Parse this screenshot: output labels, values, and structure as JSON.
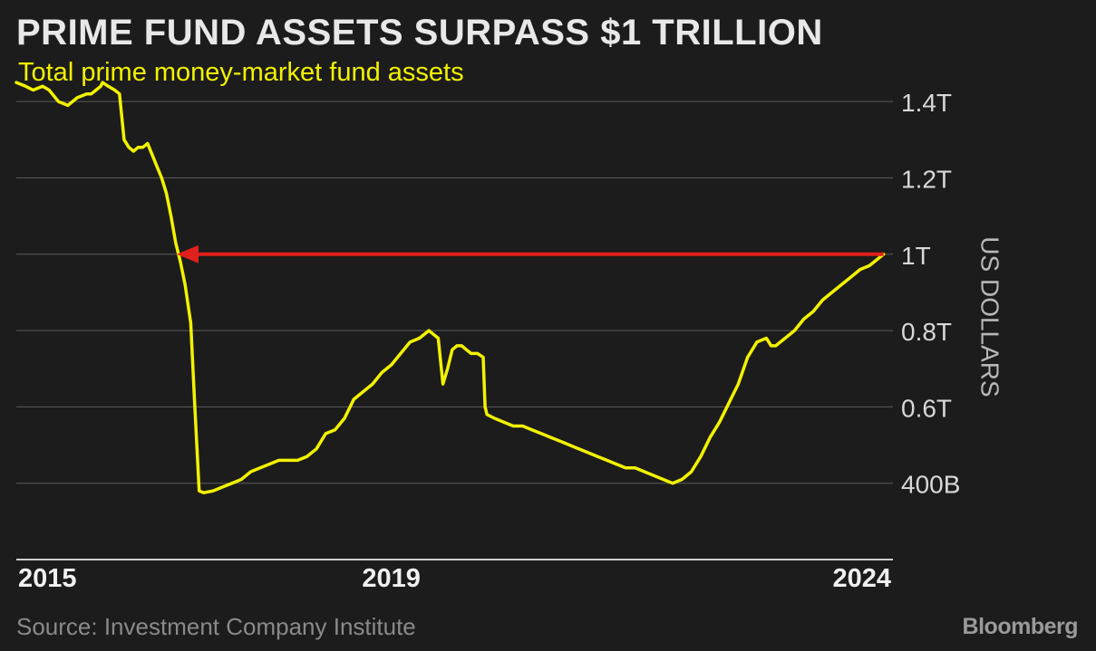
{
  "header": {
    "title": "PRIME FUND ASSETS SURPASS $1 TRILLION",
    "subtitle": "Total prime money-market fund assets"
  },
  "footer": {
    "source": "Source: Investment Company Institute",
    "brand": "Bloomberg"
  },
  "colors": {
    "background": "#1c1c1c",
    "line": "#f2f200",
    "arrow": "#e0201c",
    "grid": "#5a5a5a",
    "text": "#e8e8e8",
    "muted": "#8a8a8a"
  },
  "chart_data": {
    "type": "line",
    "title": "PRIME FUND ASSETS SURPASS $1 TRILLION",
    "subtitle": "Total prime money-market fund assets",
    "xlabel": "",
    "ylabel": "US DOLLARS",
    "xlim": [
      2015.0,
      2024.35
    ],
    "ylim": [
      0.2,
      1.5
    ],
    "x_ticks": [
      {
        "value": 2015,
        "label": "2015"
      },
      {
        "value": 2019,
        "label": "2019"
      },
      {
        "value": 2024,
        "label": "2024"
      }
    ],
    "y_ticks": [
      {
        "value": 0.4,
        "label": "400B"
      },
      {
        "value": 0.6,
        "label": "0.6T"
      },
      {
        "value": 0.8,
        "label": "0.8T"
      },
      {
        "value": 1.0,
        "label": "1T"
      },
      {
        "value": 1.2,
        "label": "1.2T"
      },
      {
        "value": 1.4,
        "label": "1.4T"
      }
    ],
    "grid": "horizontal",
    "annotation": {
      "type": "arrow",
      "from": [
        2024.25,
        1.0
      ],
      "to": [
        2016.75,
        1.0
      ]
    },
    "series": [
      {
        "x": [
          2015.0,
          2015.1,
          2015.18,
          2015.28,
          2015.35,
          2015.45,
          2015.55,
          2015.65,
          2015.75,
          2015.8,
          2015.85,
          2015.9,
          2015.92,
          2015.98,
          2016.05,
          2016.1,
          2016.15,
          2016.2,
          2016.25,
          2016.3,
          2016.35,
          2016.4,
          2016.45,
          2016.5,
          2016.55,
          2016.6,
          2016.65,
          2016.7,
          2016.75,
          2016.8,
          2016.86,
          2016.9,
          2016.95,
          2017.0,
          2017.1,
          2017.2,
          2017.3,
          2017.4,
          2017.5,
          2017.6,
          2017.7,
          2017.8,
          2017.9,
          2018.0,
          2018.1,
          2018.2,
          2018.3,
          2018.4,
          2018.5,
          2018.6,
          2018.7,
          2018.8,
          2018.9,
          2019.0,
          2019.1,
          2019.2,
          2019.3,
          2019.4,
          2019.45,
          2019.5,
          2019.55,
          2019.6,
          2019.65,
          2019.7,
          2019.75,
          2019.8,
          2019.85,
          2019.92,
          2019.98,
          2020.0,
          2020.02,
          2020.1,
          2020.2,
          2020.3,
          2020.4,
          2020.5,
          2020.6,
          2020.7,
          2020.8,
          2020.9,
          2021.0,
          2021.1,
          2021.2,
          2021.3,
          2021.4,
          2021.5,
          2021.6,
          2021.7,
          2021.8,
          2021.9,
          2022.0,
          2022.1,
          2022.2,
          2022.3,
          2022.4,
          2022.5,
          2022.6,
          2022.7,
          2022.8,
          2022.9,
          2023.0,
          2023.05,
          2023.1,
          2023.2,
          2023.3,
          2023.4,
          2023.5,
          2023.6,
          2023.7,
          2023.8,
          2023.9,
          2024.0,
          2024.1,
          2024.2,
          2024.25
        ],
        "values": [
          1.45,
          1.44,
          1.43,
          1.44,
          1.43,
          1.4,
          1.39,
          1.41,
          1.42,
          1.42,
          1.43,
          1.44,
          1.45,
          1.44,
          1.43,
          1.42,
          1.3,
          1.28,
          1.27,
          1.28,
          1.28,
          1.29,
          1.26,
          1.23,
          1.2,
          1.16,
          1.1,
          1.03,
          0.98,
          0.92,
          0.82,
          0.62,
          0.38,
          0.375,
          0.38,
          0.39,
          0.4,
          0.41,
          0.43,
          0.44,
          0.45,
          0.46,
          0.46,
          0.46,
          0.47,
          0.49,
          0.53,
          0.54,
          0.57,
          0.62,
          0.64,
          0.66,
          0.69,
          0.71,
          0.74,
          0.77,
          0.78,
          0.8,
          0.79,
          0.78,
          0.66,
          0.7,
          0.75,
          0.76,
          0.76,
          0.75,
          0.74,
          0.74,
          0.73,
          0.6,
          0.58,
          0.57,
          0.56,
          0.55,
          0.55,
          0.54,
          0.53,
          0.52,
          0.51,
          0.5,
          0.49,
          0.48,
          0.47,
          0.46,
          0.45,
          0.44,
          0.44,
          0.43,
          0.42,
          0.41,
          0.4,
          0.41,
          0.43,
          0.47,
          0.52,
          0.56,
          0.61,
          0.66,
          0.73,
          0.77,
          0.78,
          0.76,
          0.76,
          0.78,
          0.8,
          0.83,
          0.85,
          0.88,
          0.9,
          0.92,
          0.94,
          0.96,
          0.97,
          0.99,
          1.0
        ]
      }
    ]
  }
}
